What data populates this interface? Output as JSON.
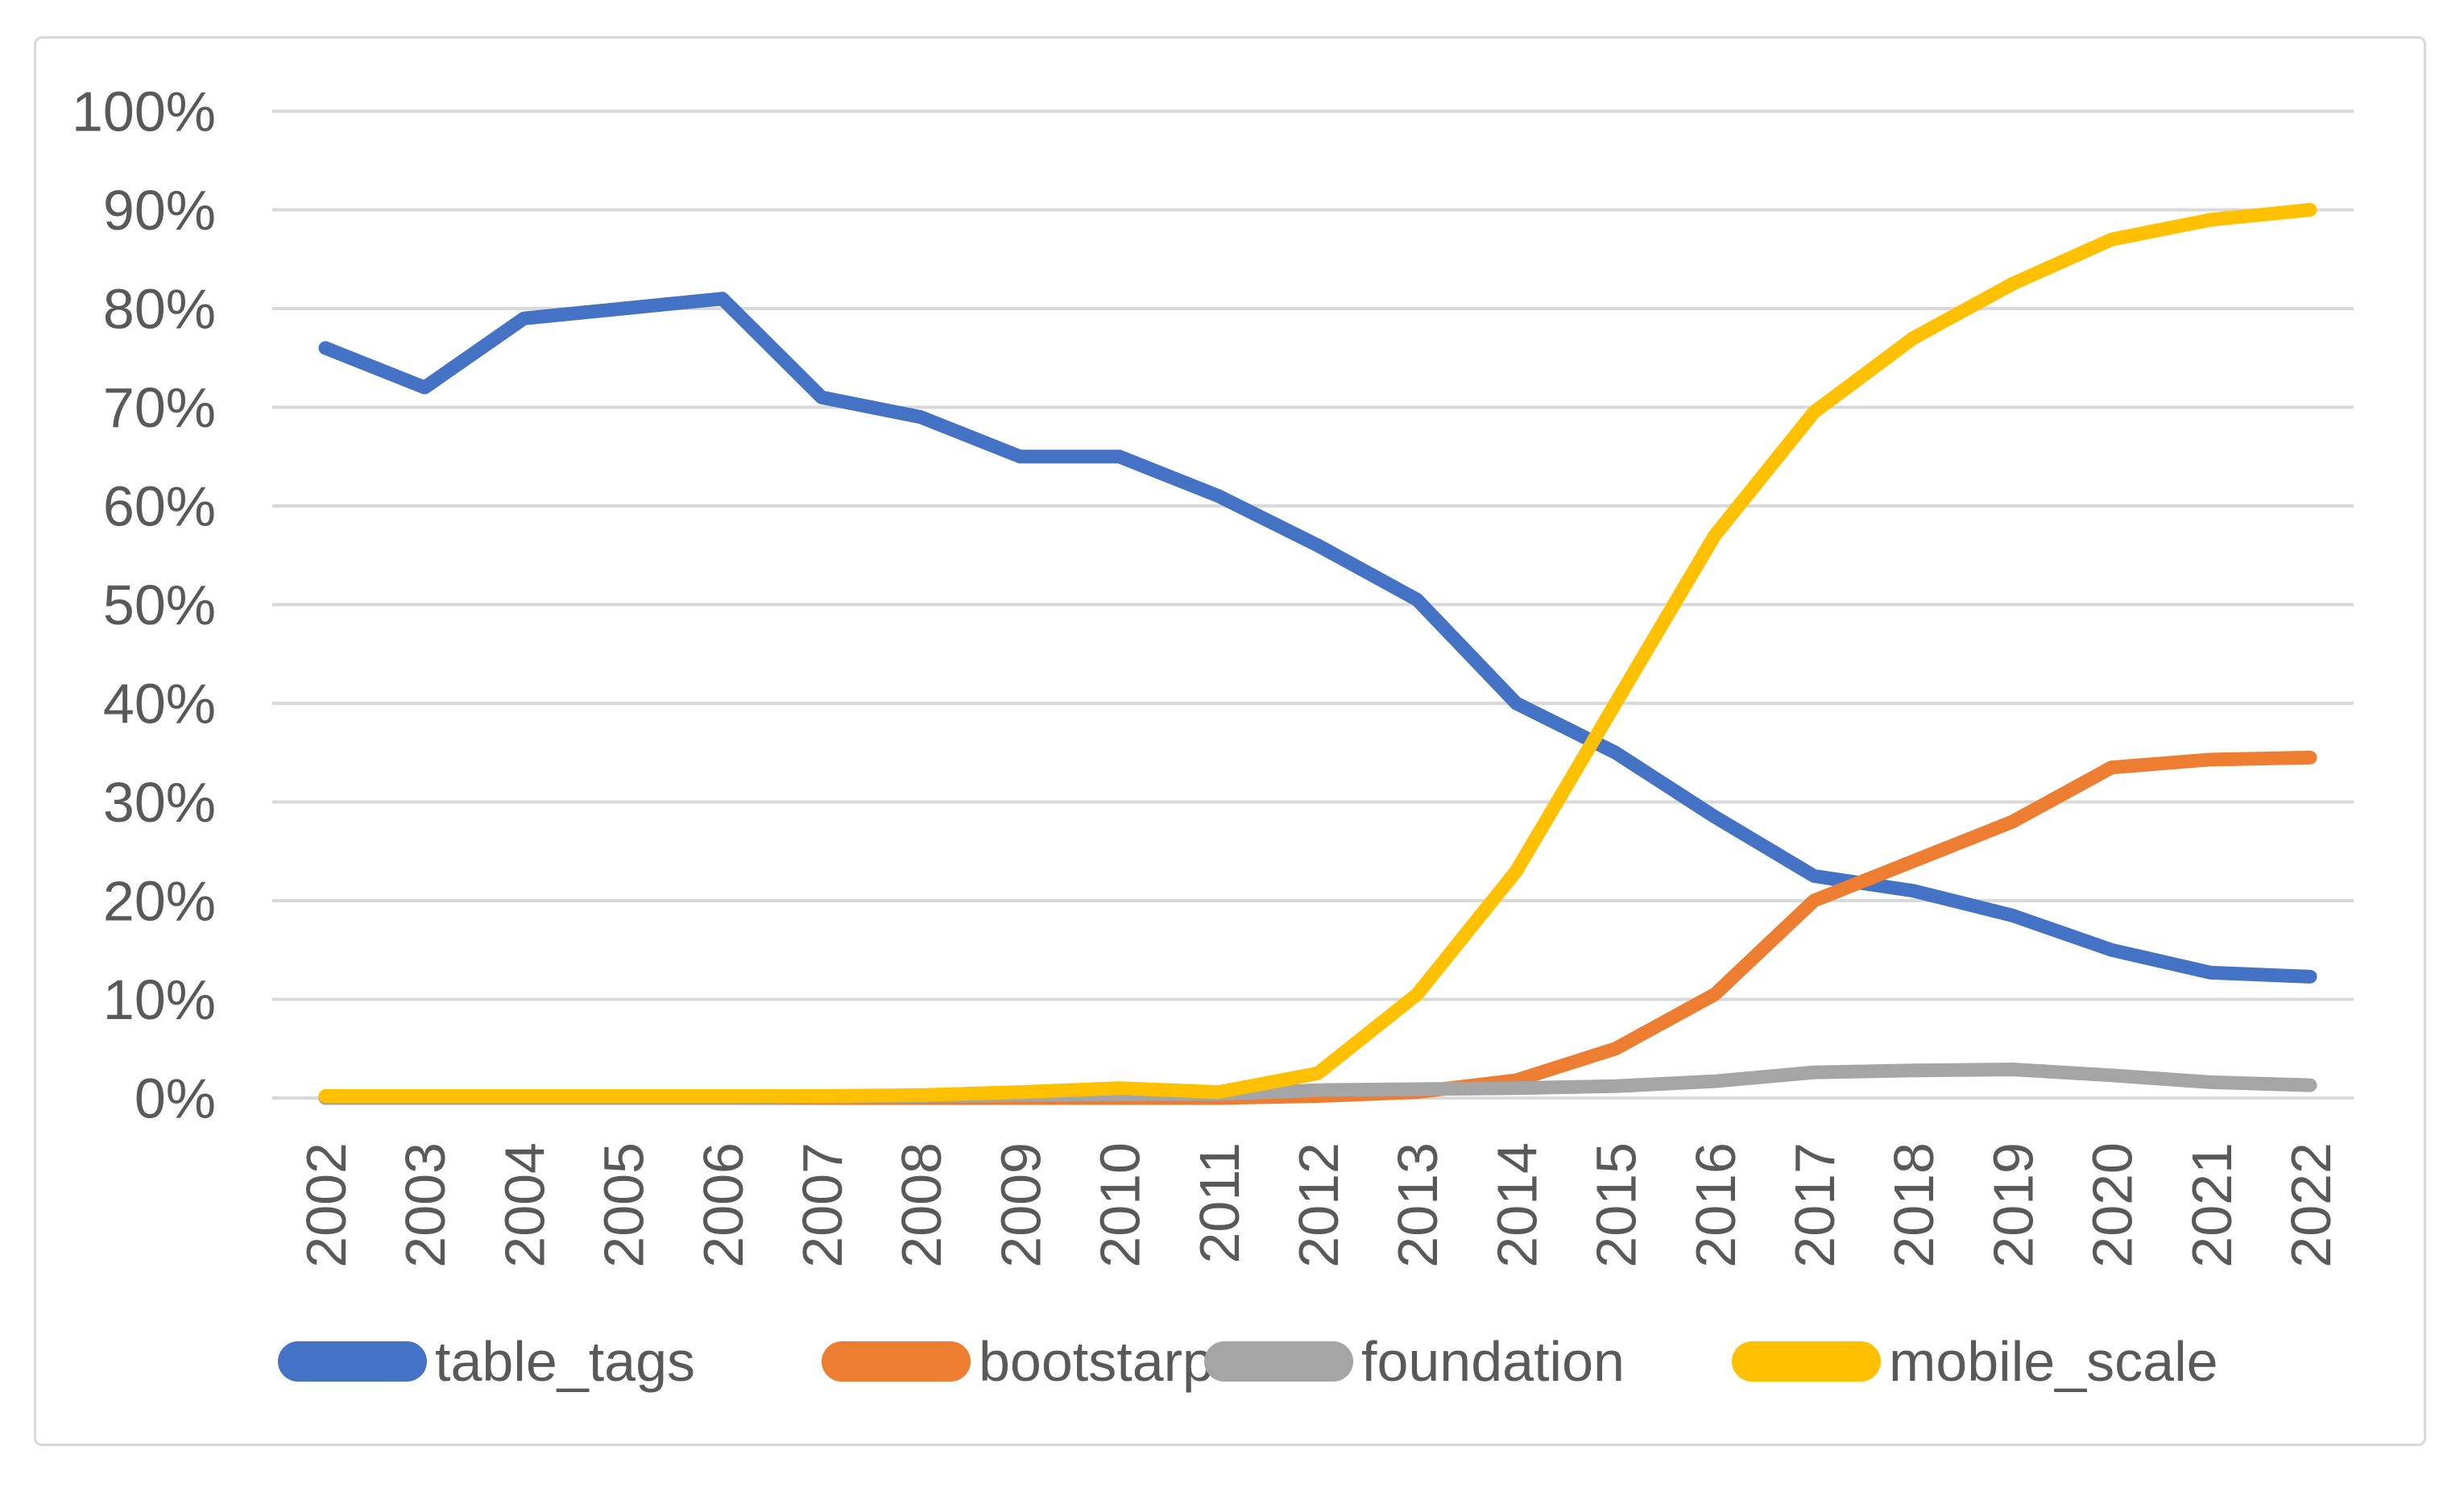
{
  "chart_data": {
    "type": "line",
    "categories": [
      "2002",
      "2003",
      "2004",
      "2005",
      "2006",
      "2007",
      "2008",
      "2009",
      "2010",
      "2011",
      "2012",
      "2013",
      "2014",
      "2015",
      "2016",
      "2017",
      "2018",
      "2019",
      "2020",
      "2021",
      "2022"
    ],
    "series": [
      {
        "name": "table_tags",
        "color": "#4472C4",
        "values": [
          76,
          72,
          79,
          80,
          81,
          71,
          69,
          65,
          65,
          61,
          56,
          50.5,
          40,
          35,
          28.5,
          22.5,
          21,
          18.5,
          15,
          12.7,
          12.3
        ]
      },
      {
        "name": "bootstarp",
        "color": "#ED7D31",
        "values": [
          0,
          0,
          0,
          0,
          0,
          0,
          0,
          0,
          0,
          0,
          0.2,
          0.6,
          1.8,
          5,
          10.5,
          20,
          24,
          28,
          33.5,
          34.3,
          34.5
        ]
      },
      {
        "name": "foundation",
        "color": "#A5A5A5",
        "values": [
          0,
          0,
          0,
          0,
          0,
          0.1,
          0.2,
          0.3,
          0.4,
          0.4,
          0.8,
          0.9,
          1,
          1.2,
          1.7,
          2.6,
          2.8,
          2.9,
          2.3,
          1.6,
          1.3
        ]
      },
      {
        "name": "mobile_scale",
        "color": "#FFC000",
        "values": [
          0.2,
          0.2,
          0.2,
          0.2,
          0.2,
          0.2,
          0.3,
          0.6,
          1,
          0.6,
          2.5,
          10.5,
          23,
          40,
          57,
          69.5,
          77,
          82.5,
          87,
          89,
          90
        ]
      }
    ],
    "y_axis": {
      "min": 0,
      "max": 100,
      "step": 10,
      "tick_labels": [
        "0%",
        "10%",
        "20%",
        "30%",
        "40%",
        "50%",
        "60%",
        "70%",
        "80%",
        "90%",
        "100%"
      ]
    },
    "grid": true,
    "legend_position": "bottom"
  },
  "styles": {
    "gridline_color": "#D9D9D9",
    "frame_border_color": "#D9D9D9",
    "axis_text_color": "#595959",
    "background_color": "#FFFFFF"
  }
}
